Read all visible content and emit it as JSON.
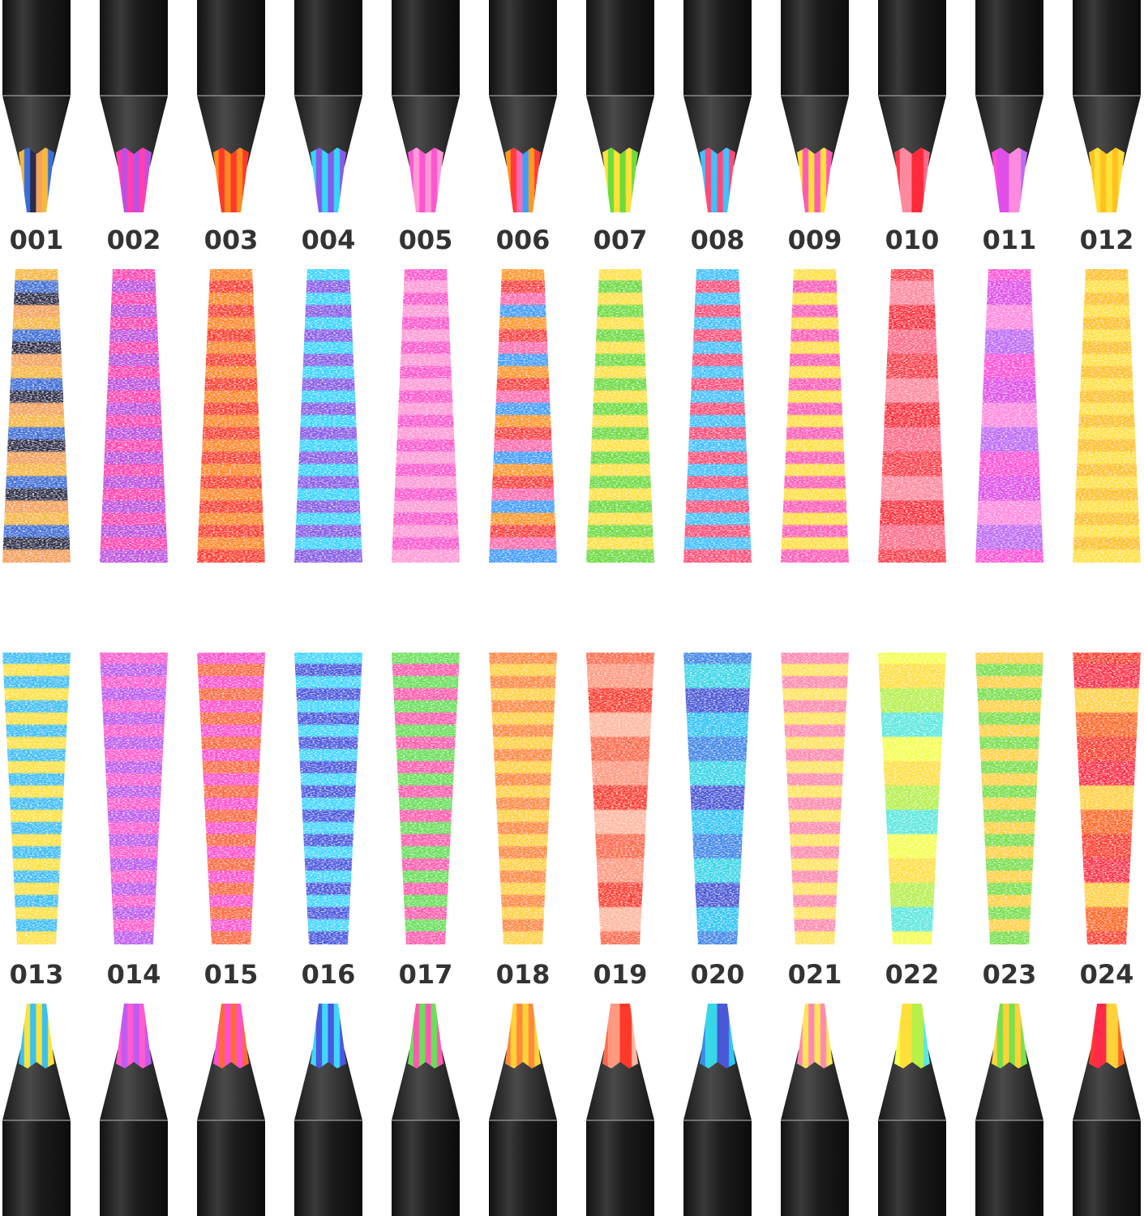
{
  "labels_top": [
    "001",
    "002",
    "003",
    "004",
    "005",
    "006",
    "007",
    "008",
    "009",
    "010",
    "011",
    "012"
  ],
  "labels_bottom": [
    "013",
    "014",
    "015",
    "016",
    "017",
    "018",
    "019",
    "020",
    "021",
    "022",
    "023",
    "024"
  ]
}
